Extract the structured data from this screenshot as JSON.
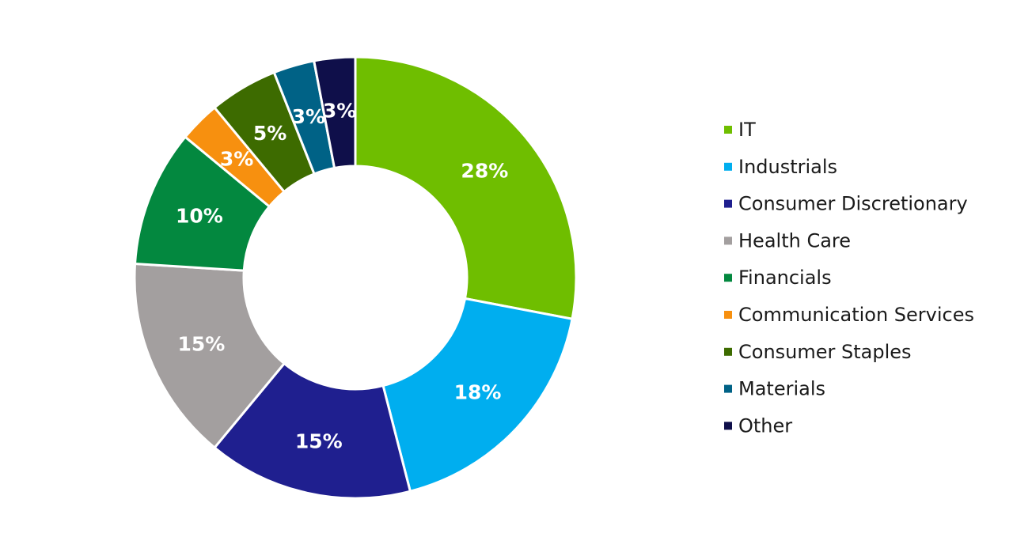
{
  "chart_data": {
    "type": "pie",
    "donut": true,
    "legend_position": "right",
    "slices": [
      {
        "label": "IT",
        "value": 28,
        "display": "28%",
        "color": "#6fbe00"
      },
      {
        "label": "Industrials",
        "value": 18,
        "display": "18%",
        "color": "#00aeef"
      },
      {
        "label": "Consumer Discretionary",
        "value": 15,
        "display": "15%",
        "color": "#1f1f8f"
      },
      {
        "label": "Health Care",
        "value": 15,
        "display": "15%",
        "color": "#a39f9f"
      },
      {
        "label": "Financials",
        "value": 10,
        "display": "10%",
        "color": "#03883f"
      },
      {
        "label": "Communication Services",
        "value": 3,
        "display": "3%",
        "color": "#f7900f"
      },
      {
        "label": "Consumer Staples",
        "value": 5,
        "display": "5%",
        "color": "#3d6b00"
      },
      {
        "label": "Materials",
        "value": 3,
        "display": "3%",
        "color": "#006286"
      },
      {
        "label": "Other",
        "value": 3,
        "display": "3%",
        "color": "#0f0f4a"
      }
    ]
  }
}
